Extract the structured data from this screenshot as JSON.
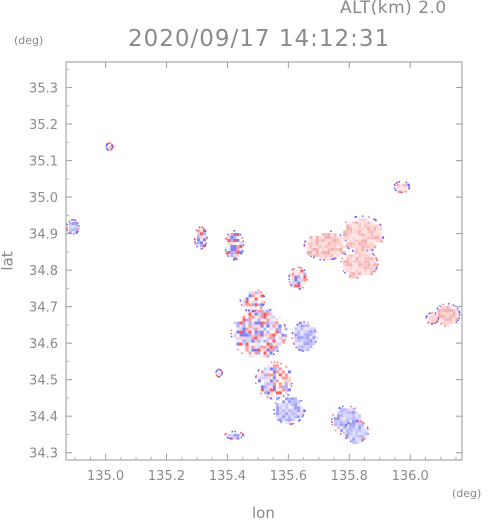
{
  "header": {
    "alt_label": "ALT(km)  2.0",
    "timestamp": "2020/09/17 14:12:31",
    "y_unit": "(deg)",
    "x_unit": "(deg)"
  },
  "chart_data": {
    "type": "heatmap",
    "xlabel": "lon",
    "ylabel": "lat",
    "xlim": [
      134.87,
      136.17
    ],
    "ylim": [
      34.28,
      35.37
    ],
    "x_ticks": [
      135.0,
      135.2,
      135.4,
      135.6,
      135.8,
      136.0
    ],
    "x_tick_labels": [
      "135.0",
      "135.2",
      "135.4",
      "135.6",
      "135.8",
      "136.0"
    ],
    "y_ticks": [
      34.3,
      34.4,
      34.5,
      34.6,
      34.7,
      34.8,
      34.9,
      35.0,
      35.1,
      35.2,
      35.3
    ],
    "y_tick_labels": [
      "34.3",
      "34.4",
      "34.5",
      "34.6",
      "34.7",
      "34.8",
      "34.9",
      "35.0",
      "35.1",
      "35.2",
      "35.3"
    ],
    "grid": false,
    "colors": {
      "approaching": "#5a5aff",
      "receding": "#ff4a4a",
      "axis": "#9a9a9a"
    },
    "echo_regions": [
      {
        "lon": 134.89,
        "lat": 34.92,
        "rx": 0.02,
        "ry": 0.02,
        "polarity": "blue"
      },
      {
        "lon": 135.01,
        "lat": 35.14,
        "rx": 0.01,
        "ry": 0.01,
        "polarity": "red"
      },
      {
        "lon": 135.31,
        "lat": 34.89,
        "rx": 0.02,
        "ry": 0.03,
        "polarity": "mixed"
      },
      {
        "lon": 135.42,
        "lat": 34.87,
        "rx": 0.03,
        "ry": 0.04,
        "polarity": "mixed"
      },
      {
        "lon": 135.5,
        "lat": 34.63,
        "rx": 0.09,
        "ry": 0.07,
        "polarity": "mixed"
      },
      {
        "lon": 135.55,
        "lat": 34.5,
        "rx": 0.06,
        "ry": 0.05,
        "polarity": "mixed"
      },
      {
        "lon": 135.6,
        "lat": 34.42,
        "rx": 0.05,
        "ry": 0.04,
        "polarity": "blue"
      },
      {
        "lon": 135.65,
        "lat": 34.62,
        "rx": 0.04,
        "ry": 0.04,
        "polarity": "blue"
      },
      {
        "lon": 135.72,
        "lat": 34.87,
        "rx": 0.07,
        "ry": 0.04,
        "polarity": "red"
      },
      {
        "lon": 135.84,
        "lat": 34.9,
        "rx": 0.07,
        "ry": 0.05,
        "polarity": "red"
      },
      {
        "lon": 135.83,
        "lat": 34.82,
        "rx": 0.06,
        "ry": 0.04,
        "polarity": "red"
      },
      {
        "lon": 135.79,
        "lat": 34.39,
        "rx": 0.05,
        "ry": 0.04,
        "polarity": "blue"
      },
      {
        "lon": 135.82,
        "lat": 34.36,
        "rx": 0.04,
        "ry": 0.03,
        "polarity": "blue"
      },
      {
        "lon": 135.97,
        "lat": 35.03,
        "rx": 0.025,
        "ry": 0.015,
        "polarity": "red"
      },
      {
        "lon": 136.12,
        "lat": 34.68,
        "rx": 0.04,
        "ry": 0.03,
        "polarity": "red"
      },
      {
        "lon": 136.07,
        "lat": 34.67,
        "rx": 0.02,
        "ry": 0.015,
        "polarity": "red"
      },
      {
        "lon": 135.37,
        "lat": 34.52,
        "rx": 0.01,
        "ry": 0.01,
        "polarity": "blue"
      },
      {
        "lon": 135.42,
        "lat": 34.35,
        "rx": 0.03,
        "ry": 0.01,
        "polarity": "blue"
      },
      {
        "lon": 135.63,
        "lat": 34.78,
        "rx": 0.03,
        "ry": 0.03,
        "polarity": "mixed"
      },
      {
        "lon": 135.48,
        "lat": 34.72,
        "rx": 0.04,
        "ry": 0.03,
        "polarity": "mixed"
      }
    ]
  }
}
